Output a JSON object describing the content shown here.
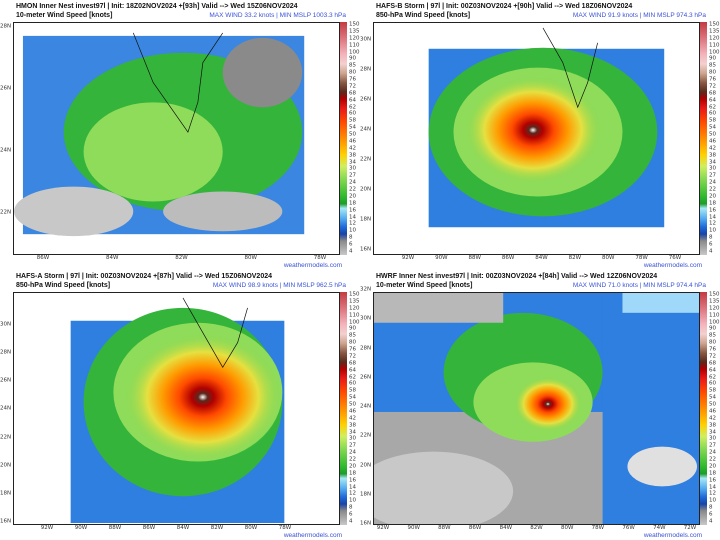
{
  "colorbar_labels": [
    "150",
    "135",
    "120",
    "110",
    "100",
    "90",
    "85",
    "80",
    "76",
    "72",
    "68",
    "64",
    "62",
    "60",
    "58",
    "54",
    "50",
    "46",
    "42",
    "38",
    "34",
    "30",
    "27",
    "24",
    "22",
    "20",
    "18",
    "16",
    "14",
    "12",
    "10",
    "8",
    "6",
    "4"
  ],
  "watermark": "weathermodels.com",
  "panels": [
    {
      "title": "HMON Inner Nest  invest97l | Init: 18Z02NOV2024 +[93h] Valid --> Wed 15Z06NOV2024",
      "subtitle": "10-meter Wind Speed [knots]",
      "stats": "MAX WIND 33.2 knots | MIN MSLP 1003.3 hPa",
      "lats": [
        "28N",
        "26N",
        "24N",
        "22N"
      ],
      "lons": [
        "86W",
        "84W",
        "82W",
        "80W",
        "78W"
      ],
      "max_wind_kt": 33.2
    },
    {
      "title": "HAFS-B Storm | 97l | Init: 00Z03NOV2024 +[90h] Valid --> Wed 18Z06NOV2024",
      "subtitle": "850-hPa Wind Speed [knots]",
      "stats": "MAX WIND 91.9 knots | MIN MSLP 974.3 hPa",
      "lats": [
        "30N",
        "28N",
        "26N",
        "24N",
        "22N",
        "20N",
        "18N",
        "16N"
      ],
      "lons": [
        "92W",
        "90W",
        "88W",
        "86W",
        "84W",
        "82W",
        "80W",
        "78W",
        "76W"
      ],
      "max_wind_kt": 91.9
    },
    {
      "title": "HAFS-A Storm | 97l | Init: 00Z03NOV2024 +[87h] Valid --> Wed 15Z06NOV2024",
      "subtitle": "850-hPa Wind Speed [knots]",
      "stats": "MAX WIND 98.9 knots | MIN MSLP 962.5 hPa",
      "lats": [
        "30N",
        "28N",
        "26N",
        "24N",
        "22N",
        "20N",
        "18N",
        "16N"
      ],
      "lons": [
        "92W",
        "90W",
        "88W",
        "86W",
        "84W",
        "82W",
        "80W",
        "78W"
      ],
      "max_wind_kt": 98.9
    },
    {
      "title": "HWRF Inner Nest  invest97l | Init: 00Z03NOV2024 +[84h] Valid --> Wed 12Z06NOV2024",
      "subtitle": "10-meter Wind Speed [knots]",
      "stats": "MAX WIND 71.0 knots | MIN MSLP 974.4 hPa",
      "lats": [
        "32N",
        "30N",
        "28N",
        "26N",
        "24N",
        "22N",
        "20N",
        "18N",
        "16N"
      ],
      "lons": [
        "92W",
        "90W",
        "88W",
        "86W",
        "84W",
        "82W",
        "80W",
        "78W",
        "76W",
        "74W",
        "72W"
      ],
      "max_wind_kt": 71.0
    }
  ]
}
